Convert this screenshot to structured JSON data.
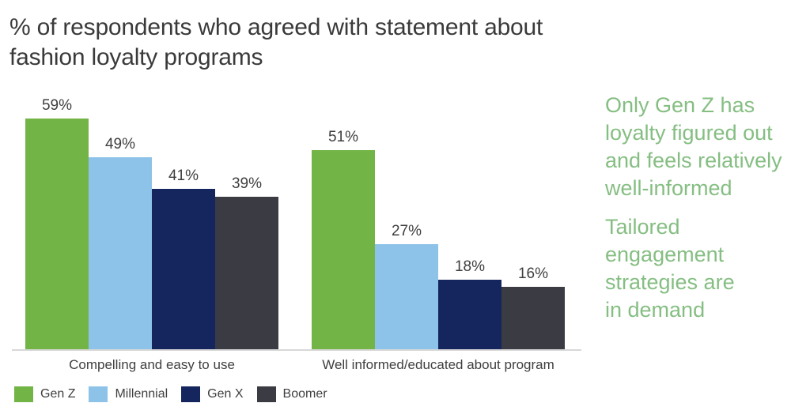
{
  "title": {
    "line1": "% of respondents who agreed with statement about",
    "line2": "fashion loyalty programs"
  },
  "chart_data": {
    "type": "bar",
    "categories": [
      "Compelling and easy to use",
      "Well informed/educated about program"
    ],
    "series": [
      {
        "name": "Gen Z",
        "color": "#73B446",
        "values": [
          59,
          51
        ]
      },
      {
        "name": "Millennial",
        "color": "#8DC3E9",
        "values": [
          49,
          27
        ]
      },
      {
        "name": "Gen X",
        "color": "#15255E",
        "values": [
          41,
          18
        ]
      },
      {
        "name": "Boomer",
        "color": "#3B3B43",
        "values": [
          39,
          16
        ]
      }
    ],
    "data_labels": true,
    "data_label_suffix": "%",
    "ylim": [
      0,
      60
    ],
    "grid": false,
    "legend_position": "bottom-left",
    "axis_color": "#D8D8D8",
    "title": "% of respondents who agreed with statement about fashion loyalty programs"
  },
  "annotations": {
    "color": "#85BE82",
    "paragraphs": [
      {
        "lines": [
          "Only Gen Z has",
          "loyalty figured out",
          "and feels relatively",
          "well-informed"
        ]
      },
      {
        "lines": [
          "Tailored",
          "engagement",
          "strategies are",
          "in demand"
        ]
      }
    ]
  }
}
